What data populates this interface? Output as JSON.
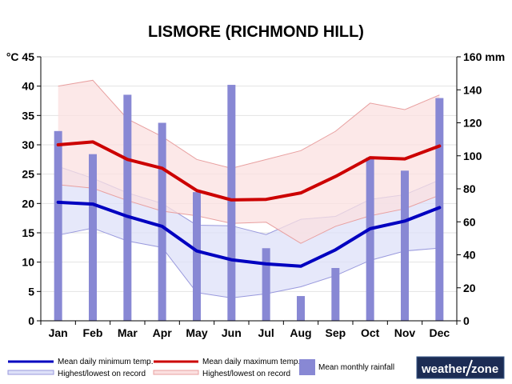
{
  "chart_data": {
    "type": "line",
    "title": "LISMORE (RICHMOND HILL)",
    "categories": [
      "Jan",
      "Feb",
      "Mar",
      "Apr",
      "May",
      "Jun",
      "Jul",
      "Aug",
      "Sep",
      "Oct",
      "Nov",
      "Dec"
    ],
    "left_axis": {
      "unit": "°C",
      "ylim": [
        0,
        45
      ],
      "ticks": [
        0,
        5,
        10,
        15,
        20,
        25,
        30,
        35,
        40,
        45
      ]
    },
    "right_axis": {
      "unit": "mm",
      "ylim": [
        0,
        160
      ],
      "ticks": [
        0,
        20,
        40,
        60,
        80,
        100,
        120,
        140,
        160
      ]
    },
    "grid": "horizontal",
    "series": [
      {
        "name": "Mean daily minimum temp.",
        "type": "line",
        "axis": "left",
        "color": "#0000c0",
        "values": [
          20.2,
          19.9,
          17.8,
          16.1,
          11.9,
          10.4,
          9.7,
          9.3,
          12.1,
          15.7,
          17.0,
          19.3
        ]
      },
      {
        "name": "Mean daily maximum temp.",
        "type": "line",
        "axis": "left",
        "color": "#cc0000",
        "values": [
          30.0,
          30.5,
          27.5,
          26.0,
          22.2,
          20.6,
          20.7,
          21.8,
          24.6,
          27.8,
          27.6,
          29.8
        ]
      },
      {
        "name": "Highest/lowest on record",
        "type": "band",
        "axis": "left",
        "color": "#dde0f8",
        "stroke": "#9999dd",
        "upper": [
          26.3,
          24.3,
          21.8,
          20.0,
          16.3,
          16.2,
          14.7,
          17.3,
          17.8,
          20.7,
          21.5,
          24.0
        ],
        "lower": [
          14.6,
          15.8,
          13.6,
          12.5,
          4.8,
          3.9,
          4.6,
          5.8,
          7.7,
          10.3,
          11.9,
          12.4
        ]
      },
      {
        "name": "Highest/lowest on record",
        "type": "band",
        "axis": "left",
        "color": "#fbe0e0",
        "stroke": "#e8a0a0",
        "upper": [
          40.0,
          41.0,
          34.4,
          31.4,
          27.5,
          26.0,
          27.5,
          29.0,
          32.3,
          37.1,
          36.0,
          38.5
        ],
        "lower": [
          23.2,
          22.6,
          20.5,
          18.7,
          17.9,
          16.6,
          16.8,
          13.2,
          16.1,
          17.9,
          19.1,
          21.4
        ]
      },
      {
        "name": "Mean monthly rainfall",
        "type": "bar",
        "axis": "right",
        "color": "#8888d4",
        "values": [
          115,
          101,
          137,
          120,
          78,
          143,
          44,
          15,
          32,
          99,
          91,
          135
        ]
      }
    ],
    "legend": {
      "position": "bottom",
      "items": [
        {
          "label": "Mean daily minimum temp.",
          "kind": "line",
          "color": "#0000c0"
        },
        {
          "label": "Mean daily maximum temp.",
          "kind": "line",
          "color": "#cc0000"
        },
        {
          "label": "Mean monthly rainfall",
          "kind": "bar",
          "color": "#8888d4"
        },
        {
          "label": "Highest/lowest on record",
          "kind": "band",
          "color": "#dde0f8",
          "stroke": "#9999dd"
        },
        {
          "label": "Highest/lowest on record",
          "kind": "band",
          "color": "#fbe0e0",
          "stroke": "#e8a0a0"
        }
      ]
    }
  },
  "brand": {
    "part1": "weather",
    "part2": "zone"
  }
}
